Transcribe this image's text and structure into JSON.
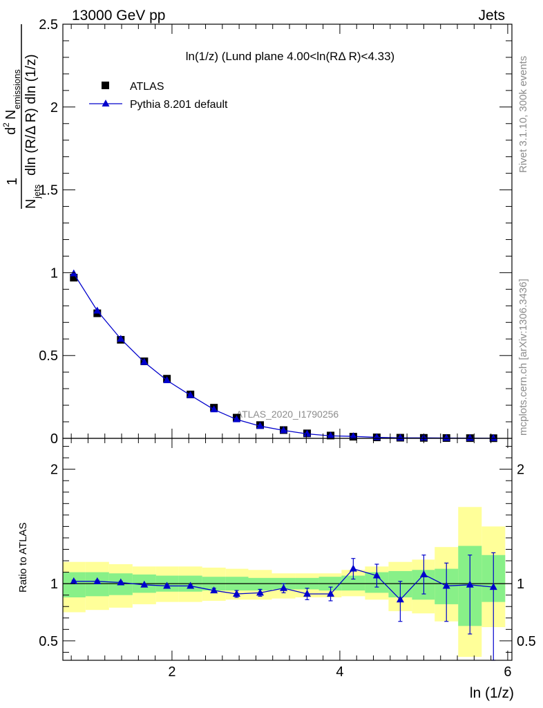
{
  "header": {
    "left": "13000 GeV pp",
    "right": "Jets"
  },
  "side_text": {
    "rivet": "Rivet 3.1.10,  300k events",
    "mcplots": "mcplots.cern.ch [arXiv:1306.3436]"
  },
  "chart_data": [
    {
      "type": "scatter",
      "title": "ln(1/z)  (Lund plane 4.00<ln(RΔ R)<4.33)",
      "watermark": "ATLAS_2020_I1790256",
      "xlim": [
        0.7,
        6.05
      ],
      "ylim": [
        0,
        2.5
      ],
      "ylabel_parts": {
        "frac_num": "1",
        "frac_den": "N",
        "frac_den_sub": "jets",
        "d": "d",
        "d_sup": "2",
        "n": "N",
        "n_sub": "emissions",
        "denom": "dln (R/Δ R) dln (1/z)"
      },
      "yticks": [
        {
          "value": 0,
          "label": "0"
        },
        {
          "value": 0.5,
          "label": "0.5"
        },
        {
          "value": 1,
          "label": "1"
        },
        {
          "value": 1.5,
          "label": "1.5"
        },
        {
          "value": 2,
          "label": "2"
        },
        {
          "value": 2.5,
          "label": "2.5"
        }
      ],
      "legend": {
        "position": "top-left",
        "entries": [
          {
            "name": "ATLAS",
            "marker": "square",
            "color": "#000000"
          },
          {
            "name": "Pythia 8.201 default",
            "marker": "triangle",
            "color": "#0000cc"
          }
        ]
      },
      "series": [
        {
          "name": "ATLAS",
          "x": [
            0.83,
            1.11,
            1.39,
            1.67,
            1.94,
            2.22,
            2.5,
            2.77,
            3.05,
            3.33,
            3.61,
            3.89,
            4.16,
            4.44,
            4.72,
            5.0,
            5.27,
            5.55,
            5.83
          ],
          "y": [
            0.97,
            0.755,
            0.595,
            0.465,
            0.36,
            0.265,
            0.185,
            0.125,
            0.08,
            0.05,
            0.03,
            0.017,
            0.01,
            0.006,
            0.004,
            0.003,
            0.002,
            0.0015,
            0.001
          ]
        },
        {
          "name": "Pythia 8.201 default",
          "x": [
            0.83,
            1.11,
            1.39,
            1.67,
            1.94,
            2.22,
            2.5,
            2.77,
            3.05,
            3.33,
            3.61,
            3.89,
            4.16,
            4.44,
            4.72,
            5.0,
            5.27,
            5.55,
            5.83
          ],
          "y": [
            0.995,
            0.77,
            0.6,
            0.46,
            0.35,
            0.26,
            0.174,
            0.114,
            0.074,
            0.048,
            0.027,
            0.015,
            0.012,
            0.006,
            0.003,
            0.003,
            0.002,
            0.0015,
            0.001
          ]
        }
      ]
    },
    {
      "type": "scatter",
      "ylabel": "Ratio to ATLAS",
      "xlabel": "ln (1/z)",
      "xlim": [
        0.7,
        6.05
      ],
      "ylim": [
        0.33,
        2.27
      ],
      "xticks": [
        {
          "value": 2,
          "label": "2"
        },
        {
          "value": 4,
          "label": "4"
        },
        {
          "value": 6,
          "label": "6"
        }
      ],
      "yticks": [
        {
          "value": 0.5,
          "label": "0.5"
        },
        {
          "value": 1,
          "label": "1"
        },
        {
          "value": 2,
          "label": "2"
        }
      ],
      "reference_line": 1,
      "bands": {
        "yellow_color": "#ffff99",
        "green_color": "#88f088",
        "bins": [
          {
            "lo": 0.7,
            "hi": 0.97,
            "ylo": 0.75,
            "yhi": 1.19,
            "glo": 0.88,
            "ghi": 1.1
          },
          {
            "lo": 0.97,
            "hi": 1.25,
            "ylo": 0.77,
            "yhi": 1.19,
            "glo": 0.89,
            "ghi": 1.1
          },
          {
            "lo": 1.25,
            "hi": 1.53,
            "ylo": 0.79,
            "yhi": 1.17,
            "glo": 0.9,
            "ghi": 1.09
          },
          {
            "lo": 1.53,
            "hi": 1.81,
            "ylo": 0.82,
            "yhi": 1.15,
            "glo": 0.92,
            "ghi": 1.08
          },
          {
            "lo": 1.81,
            "hi": 2.08,
            "ylo": 0.84,
            "yhi": 1.15,
            "glo": 0.93,
            "ghi": 1.07
          },
          {
            "lo": 2.08,
            "hi": 2.36,
            "ylo": 0.84,
            "yhi": 1.15,
            "glo": 0.93,
            "ghi": 1.07
          },
          {
            "lo": 2.36,
            "hi": 2.64,
            "ylo": 0.85,
            "yhi": 1.14,
            "glo": 0.94,
            "ghi": 1.06
          },
          {
            "lo": 2.64,
            "hi": 2.91,
            "ylo": 0.86,
            "yhi": 1.13,
            "glo": 0.94,
            "ghi": 1.06
          },
          {
            "lo": 2.91,
            "hi": 3.19,
            "ylo": 0.86,
            "yhi": 1.12,
            "glo": 0.94,
            "ghi": 1.05
          },
          {
            "lo": 3.19,
            "hi": 3.47,
            "ylo": 0.87,
            "yhi": 1.09,
            "glo": 0.95,
            "ghi": 1.05
          },
          {
            "lo": 3.47,
            "hi": 3.75,
            "ylo": 0.88,
            "yhi": 1.09,
            "glo": 0.95,
            "ghi": 1.05
          },
          {
            "lo": 3.75,
            "hi": 4.02,
            "ylo": 0.88,
            "yhi": 1.09,
            "glo": 0.94,
            "ghi": 1.06
          },
          {
            "lo": 4.02,
            "hi": 4.3,
            "ylo": 0.89,
            "yhi": 1.12,
            "glo": 0.94,
            "ghi": 1.07
          },
          {
            "lo": 4.3,
            "hi": 4.58,
            "ylo": 0.86,
            "yhi": 1.15,
            "glo": 0.92,
            "ghi": 1.1
          },
          {
            "lo": 4.58,
            "hi": 4.86,
            "ylo": 0.76,
            "yhi": 1.19,
            "glo": 0.88,
            "ghi": 1.11
          },
          {
            "lo": 4.86,
            "hi": 5.13,
            "ylo": 0.74,
            "yhi": 1.21,
            "glo": 0.86,
            "ghi": 1.12
          },
          {
            "lo": 5.13,
            "hi": 5.41,
            "ylo": 0.67,
            "yhi": 1.32,
            "glo": 0.82,
            "ghi": 1.13
          },
          {
            "lo": 5.41,
            "hi": 5.69,
            "ylo": 0.36,
            "yhi": 1.67,
            "glo": 0.63,
            "ghi": 1.33
          },
          {
            "lo": 5.69,
            "hi": 5.97,
            "ylo": 0.62,
            "yhi": 1.5,
            "glo": 0.84,
            "ghi": 1.25
          }
        ]
      },
      "series": [
        {
          "name": "Pythia 8.201 default",
          "x": [
            0.83,
            1.11,
            1.39,
            1.67,
            1.94,
            2.22,
            2.5,
            2.77,
            3.05,
            3.33,
            3.61,
            3.89,
            4.16,
            4.44,
            4.72,
            5.0,
            5.27,
            5.55,
            5.83
          ],
          "y": [
            1.02,
            1.02,
            1.01,
            0.99,
            0.98,
            0.98,
            0.94,
            0.91,
            0.92,
            0.96,
            0.91,
            0.91,
            1.13,
            1.07,
            0.86,
            1.08,
            0.98,
            0.99,
            0.97
          ],
          "err_lo": [
            0.01,
            0.01,
            0.01,
            0.01,
            0.01,
            0.01,
            0.02,
            0.03,
            0.03,
            0.04,
            0.05,
            0.06,
            0.09,
            0.1,
            0.19,
            0.17,
            0.31,
            0.43,
            0.65
          ],
          "err_hi": [
            0.01,
            0.01,
            0.01,
            0.01,
            0.01,
            0.01,
            0.02,
            0.03,
            0.03,
            0.04,
            0.05,
            0.06,
            0.09,
            0.1,
            0.16,
            0.17,
            0.2,
            0.26,
            0.3
          ]
        }
      ]
    }
  ]
}
